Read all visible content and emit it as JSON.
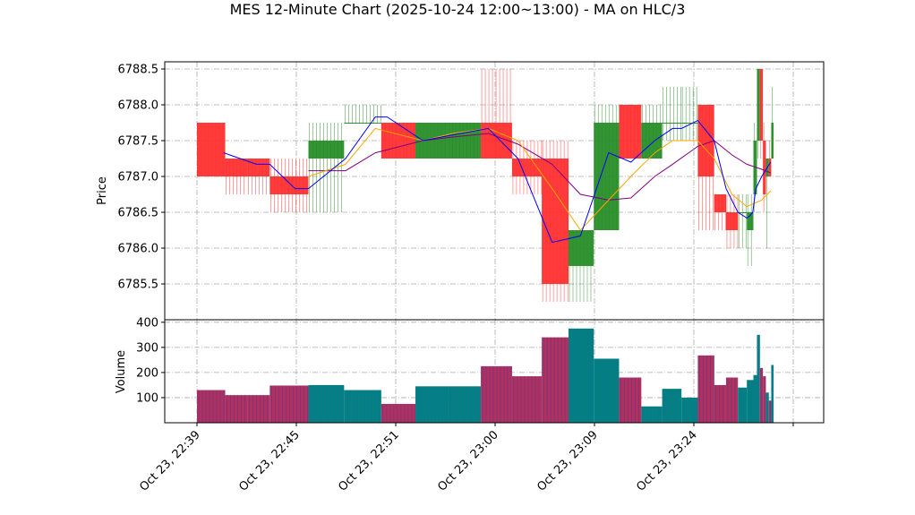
{
  "chart_data": {
    "type": "candlestick",
    "title": "MES 12-Minute Chart (2025-10-24 12:00~13:00) - MA on HLC/3",
    "price_panel": {
      "ylabel": "Price",
      "ylim": [
        6785.0,
        6788.6
      ],
      "yticks": [
        6785.5,
        6786.0,
        6786.5,
        6787.0,
        6787.5,
        6788.0,
        6788.5
      ],
      "ytick_labels": [
        "6785.5",
        "6786.0",
        "6786.5",
        "6787.0",
        "6787.5",
        "6788.0",
        "6788.5"
      ],
      "grid": true
    },
    "volume_panel": {
      "ylabel": "Volume",
      "ylim": [
        0,
        410
      ],
      "yticks": [
        100,
        200,
        300,
        400
      ],
      "ytick_labels": [
        "100",
        "200",
        "300",
        "400"
      ],
      "grid": true
    },
    "x_ticks": [
      "Oct 23, 22:39",
      "Oct 23, 22:45",
      "Oct 23, 22:51",
      "Oct 23, 23:00",
      "Oct 23, 23:09",
      "Oct 23, 23:24",
      ""
    ],
    "colors": {
      "up": "#228b22",
      "down": "#ff2a2a",
      "volume_up": "#008080",
      "volume_down": "#b03060",
      "ma_fast": "#0000ff",
      "ma_mid": "#ffa500",
      "ma_slow": "#800080",
      "grid": "#aaaaaa"
    },
    "bars": [
      {
        "x": 0.0,
        "w": 0.095,
        "open": 6787.75,
        "high": 6787.75,
        "low": 6787.0,
        "close": 6787.0,
        "volume": 130
      },
      {
        "x": 0.095,
        "w": 0.075,
        "open": 6787.25,
        "high": 6787.25,
        "low": 6786.75,
        "close": 6787.0,
        "volume": 110
      },
      {
        "x": 0.17,
        "w": 0.075,
        "open": 6787.25,
        "high": 6787.25,
        "low": 6786.75,
        "close": 6787.0,
        "volume": 110
      },
      {
        "x": 0.245,
        "w": 0.13,
        "open": 6787.0,
        "high": 6787.25,
        "low": 6786.5,
        "close": 6786.75,
        "volume": 148
      },
      {
        "x": 0.375,
        "w": 0.12,
        "open": 6787.25,
        "high": 6787.75,
        "low": 6786.5,
        "close": 6787.5,
        "volume": 150
      },
      {
        "x": 0.495,
        "w": 0.125,
        "open": 6787.75,
        "high": 6788.0,
        "low": 6787.75,
        "close": 6787.75,
        "volume": 130
      },
      {
        "x": 0.62,
        "w": 0.115,
        "open": 6787.75,
        "high": 6787.75,
        "low": 6787.25,
        "close": 6787.25,
        "volume": 75
      },
      {
        "x": 0.735,
        "w": 0.11,
        "open": 6787.25,
        "high": 6787.75,
        "low": 6787.25,
        "close": 6787.75,
        "volume": 145
      },
      {
        "x": 0.845,
        "w": 0.11,
        "open": 6787.25,
        "high": 6787.75,
        "low": 6787.25,
        "close": 6787.75,
        "volume": 145
      },
      {
        "x": 0.955,
        "w": 0.105,
        "open": 6787.75,
        "high": 6788.5,
        "low": 6787.25,
        "close": 6787.25,
        "volume": 225
      },
      {
        "x": 1.06,
        "w": 0.1,
        "open": 6787.25,
        "high": 6787.5,
        "low": 6786.75,
        "close": 6787.0,
        "volume": 185
      },
      {
        "x": 1.16,
        "w": 0.09,
        "open": 6787.25,
        "high": 6787.5,
        "low": 6785.25,
        "close": 6785.5,
        "volume": 340
      },
      {
        "x": 1.25,
        "w": 0.085,
        "open": 6785.75,
        "high": 6786.25,
        "low": 6785.25,
        "close": 6786.25,
        "volume": 375
      },
      {
        "x": 1.335,
        "w": 0.085,
        "open": 6786.25,
        "high": 6788.0,
        "low": 6786.25,
        "close": 6787.75,
        "volume": 255
      },
      {
        "x": 1.42,
        "w": 0.075,
        "open": 6788.0,
        "high": 6788.0,
        "low": 6787.25,
        "close": 6787.25,
        "volume": 180
      },
      {
        "x": 1.495,
        "w": 0.07,
        "open": 6787.25,
        "high": 6788.0,
        "low": 6787.25,
        "close": 6787.75,
        "volume": 65
      },
      {
        "x": 1.565,
        "w": 0.065,
        "open": 6787.75,
        "high": 6788.25,
        "low": 6787.5,
        "close": 6787.75,
        "volume": 135
      },
      {
        "x": 1.63,
        "w": 0.055,
        "open": 6787.75,
        "high": 6788.25,
        "low": 6787.5,
        "close": 6787.75,
        "volume": 100
      },
      {
        "x": 1.685,
        "w": 0.055,
        "open": 6788.0,
        "high": 6788.0,
        "low": 6786.25,
        "close": 6787.0,
        "volume": 268
      },
      {
        "x": 1.74,
        "w": 0.04,
        "open": 6786.75,
        "high": 6786.75,
        "low": 6786.25,
        "close": 6786.5,
        "volume": 150
      },
      {
        "x": 1.78,
        "w": 0.04,
        "open": 6786.5,
        "high": 6786.75,
        "low": 6786.0,
        "close": 6786.25,
        "volume": 180
      },
      {
        "x": 1.82,
        "w": 0.03,
        "open": 6786.5,
        "high": 6786.75,
        "low": 6786.0,
        "close": 6786.5,
        "volume": 140
      },
      {
        "x": 1.85,
        "w": 0.022,
        "open": 6786.25,
        "high": 6786.75,
        "low": 6785.75,
        "close": 6786.5,
        "volume": 170
      },
      {
        "x": 1.872,
        "w": 0.012,
        "open": 6786.75,
        "high": 6787.75,
        "low": 6786.5,
        "close": 6787.5,
        "volume": 190
      },
      {
        "x": 1.884,
        "w": 0.01,
        "open": 6787.5,
        "high": 6788.5,
        "low": 6787.25,
        "close": 6788.5,
        "volume": 350
      },
      {
        "x": 1.894,
        "w": 0.01,
        "open": 6788.5,
        "high": 6788.5,
        "low": 6787.25,
        "close": 6787.5,
        "volume": 218
      },
      {
        "x": 1.904,
        "w": 0.01,
        "open": 6787.5,
        "high": 6787.75,
        "low": 6786.5,
        "close": 6786.75,
        "volume": 185
      },
      {
        "x": 1.914,
        "w": 0.01,
        "open": 6787.0,
        "high": 6787.25,
        "low": 6786.0,
        "close": 6787.25,
        "volume": 120
      },
      {
        "x": 1.924,
        "w": 0.008,
        "open": 6787.25,
        "high": 6787.5,
        "low": 6787.0,
        "close": 6787.0,
        "volume": 88
      },
      {
        "x": 1.932,
        "w": 0.008,
        "open": 6787.25,
        "high": 6788.25,
        "low": 6787.25,
        "close": 6787.75,
        "volume": 230
      }
    ],
    "ma_fast": [
      [
        0.09,
        6787.33
      ],
      [
        0.2,
        6787.17
      ],
      [
        0.245,
        6787.17
      ],
      [
        0.33,
        6786.83
      ],
      [
        0.375,
        6786.83
      ],
      [
        0.5,
        6787.25
      ],
      [
        0.6,
        6787.83
      ],
      [
        0.64,
        6787.83
      ],
      [
        0.76,
        6787.5
      ],
      [
        0.86,
        6787.58
      ],
      [
        0.98,
        6787.67
      ],
      [
        1.08,
        6787.25
      ],
      [
        1.195,
        6786.08
      ],
      [
        1.29,
        6786.17
      ],
      [
        1.385,
        6787.33
      ],
      [
        1.46,
        6787.2
      ],
      [
        1.54,
        6787.5
      ],
      [
        1.6,
        6787.67
      ],
      [
        1.63,
        6787.67
      ],
      [
        1.685,
        6787.78
      ],
      [
        1.74,
        6787.5
      ],
      [
        1.78,
        6786.83
      ],
      [
        1.82,
        6786.5
      ],
      [
        1.85,
        6786.42
      ],
      [
        1.86,
        6786.45
      ],
      [
        1.87,
        6786.5
      ],
      [
        1.88,
        6786.83
      ],
      [
        1.9,
        6787.0
      ],
      [
        1.93,
        6787.2
      ]
    ],
    "ma_mid": [
      [
        0.375,
        6787.0
      ],
      [
        0.5,
        6787.17
      ],
      [
        0.6,
        6787.67
      ],
      [
        0.76,
        6787.5
      ],
      [
        0.86,
        6787.6
      ],
      [
        0.98,
        6787.67
      ],
      [
        1.08,
        6787.5
      ],
      [
        1.195,
        6786.83
      ],
      [
        1.29,
        6786.25
      ],
      [
        1.385,
        6786.67
      ],
      [
        1.46,
        6787.0
      ],
      [
        1.54,
        6787.33
      ],
      [
        1.6,
        6787.5
      ],
      [
        1.685,
        6787.5
      ],
      [
        1.74,
        6787.25
      ],
      [
        1.8,
        6786.75
      ],
      [
        1.85,
        6786.58
      ],
      [
        1.9,
        6786.67
      ],
      [
        1.93,
        6786.8
      ]
    ],
    "ma_slow": [
      [
        0.375,
        6787.08
      ],
      [
        0.5,
        6787.08
      ],
      [
        0.6,
        6787.33
      ],
      [
        0.76,
        6787.5
      ],
      [
        0.86,
        6787.55
      ],
      [
        0.98,
        6787.6
      ],
      [
        1.08,
        6787.45
      ],
      [
        1.195,
        6787.17
      ],
      [
        1.29,
        6786.75
      ],
      [
        1.385,
        6786.67
      ],
      [
        1.46,
        6786.7
      ],
      [
        1.54,
        6787.0
      ],
      [
        1.6,
        6787.17
      ],
      [
        1.685,
        6787.42
      ],
      [
        1.74,
        6787.5
      ],
      [
        1.8,
        6787.3
      ],
      [
        1.85,
        6787.17
      ],
      [
        1.9,
        6787.1
      ],
      [
        1.93,
        6787.05
      ]
    ]
  }
}
